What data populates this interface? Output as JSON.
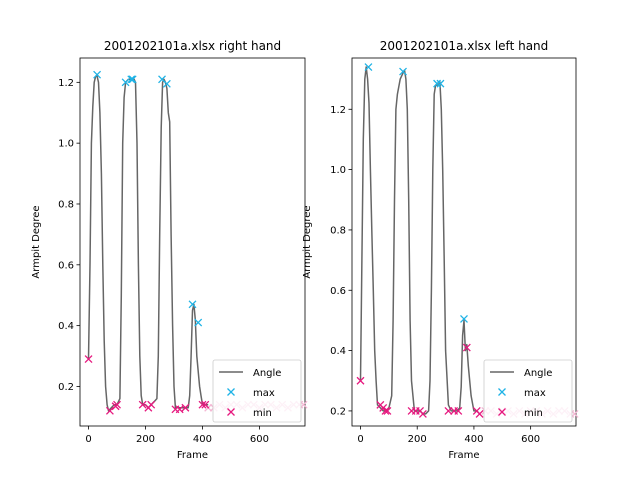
{
  "chart_data": [
    {
      "type": "line",
      "title": "2001202101a.xlsx right hand",
      "xlabel": "Frame",
      "ylabel": "Armpit Degree",
      "xlim": [
        -30,
        760
      ],
      "ylim": [
        0.07,
        1.28
      ],
      "xticks": [
        0,
        200,
        400,
        600
      ],
      "yticks": [
        0.2,
        0.4,
        0.6,
        0.8,
        1.0,
        1.2
      ],
      "ytick_labels": [
        "0.2",
        "0.4",
        "0.6",
        "0.8",
        "1.0",
        "1.2"
      ],
      "legend": {
        "position": "lower right",
        "entries": [
          "Angle",
          "max",
          "min"
        ]
      },
      "colors": {
        "angle": "#666666",
        "max": "#1fb3e6",
        "min": "#e6197f",
        "tail": "#f4b8d4"
      },
      "series": [
        {
          "name": "Angle",
          "x": [
            0,
            5,
            10,
            15,
            20,
            25,
            30,
            35,
            40,
            45,
            50,
            55,
            60,
            65,
            70,
            80,
            90,
            100,
            110,
            115,
            120,
            125,
            130,
            140,
            150,
            160,
            165,
            170,
            175,
            180,
            185,
            190,
            200,
            210,
            220,
            230,
            240,
            245,
            250,
            255,
            260,
            265,
            270,
            275,
            280,
            285,
            290,
            295,
            300,
            305,
            310,
            320,
            330,
            340,
            350,
            355,
            360,
            365,
            370,
            375,
            380,
            385,
            390,
            395,
            400,
            410,
            420
          ],
          "y": [
            0.29,
            0.6,
            1.0,
            1.12,
            1.2,
            1.22,
            1.22,
            1.2,
            1.1,
            0.9,
            0.6,
            0.35,
            0.2,
            0.14,
            0.12,
            0.13,
            0.14,
            0.14,
            0.16,
            0.5,
            1.0,
            1.15,
            1.2,
            1.21,
            1.21,
            1.21,
            1.2,
            1.0,
            0.6,
            0.3,
            0.17,
            0.14,
            0.14,
            0.13,
            0.14,
            0.15,
            0.16,
            0.3,
            0.7,
            1.05,
            1.2,
            1.21,
            1.2,
            1.18,
            1.1,
            1.07,
            0.7,
            0.4,
            0.2,
            0.13,
            0.13,
            0.13,
            0.13,
            0.13,
            0.13,
            0.17,
            0.3,
            0.45,
            0.47,
            0.42,
            0.3,
            0.25,
            0.2,
            0.17,
            0.14,
            0.14,
            0.14
          ]
        },
        {
          "name": "max",
          "x": [
            30,
            130,
            150,
            155,
            258,
            275,
            365,
            385
          ],
          "y": [
            1.225,
            1.2,
            1.21,
            1.21,
            1.21,
            1.195,
            0.47,
            0.41
          ]
        },
        {
          "name": "min",
          "x": [
            0,
            75,
            95,
            100,
            190,
            210,
            220,
            305,
            320,
            340,
            400,
            410
          ],
          "y": [
            0.29,
            0.12,
            0.135,
            0.14,
            0.14,
            0.13,
            0.14,
            0.125,
            0.125,
            0.13,
            0.14,
            0.14
          ]
        },
        {
          "x": [
            420,
            440,
            460,
            480,
            500,
            520,
            540,
            560,
            580,
            600,
            620,
            640,
            660,
            680,
            700,
            720,
            740,
            755
          ],
          "y": [
            0.13,
            0.13,
            0.14,
            0.13,
            0.14,
            0.14,
            0.13,
            0.14,
            0.14,
            0.13,
            0.14,
            0.14,
            0.13,
            0.14,
            0.13,
            0.14,
            0.14,
            0.14
          ]
        }
      ]
    },
    {
      "type": "line",
      "title": "2001202101a.xlsx left hand",
      "xlabel": "Frame",
      "ylabel": "Armpit Degree",
      "xlim": [
        -30,
        760
      ],
      "ylim": [
        0.15,
        1.37
      ],
      "xticks": [
        0,
        200,
        400,
        600
      ],
      "yticks": [
        0.2,
        0.4,
        0.6,
        0.8,
        1.0,
        1.2
      ],
      "ytick_labels": [
        "0.2",
        "0.4",
        "0.6",
        "0.8",
        "1.0",
        "1.2"
      ],
      "legend": {
        "position": "lower right",
        "entries": [
          "Angle",
          "max",
          "min"
        ]
      },
      "colors": {
        "angle": "#666666",
        "max": "#1fb3e6",
        "min": "#e6197f",
        "tail": "#f4b8d4"
      },
      "series": [
        {
          "name": "Angle",
          "x": [
            0,
            5,
            10,
            15,
            20,
            25,
            30,
            35,
            40,
            45,
            50,
            55,
            60,
            70,
            80,
            90,
            100,
            110,
            115,
            120,
            125,
            130,
            140,
            150,
            155,
            160,
            165,
            170,
            175,
            180,
            190,
            200,
            210,
            220,
            230,
            240,
            245,
            250,
            255,
            260,
            265,
            270,
            275,
            280,
            285,
            290,
            295,
            300,
            310,
            320,
            330,
            340,
            350,
            355,
            360,
            365,
            370,
            375,
            380,
            385,
            390,
            400,
            410,
            420
          ],
          "y": [
            0.3,
            0.7,
            1.1,
            1.3,
            1.34,
            1.3,
            1.22,
            1.0,
            0.8,
            0.6,
            0.4,
            0.3,
            0.22,
            0.21,
            0.2,
            0.2,
            0.21,
            0.25,
            0.5,
            0.9,
            1.2,
            1.25,
            1.3,
            1.32,
            1.33,
            1.3,
            1.2,
            0.9,
            0.5,
            0.3,
            0.2,
            0.2,
            0.2,
            0.19,
            0.19,
            0.2,
            0.3,
            0.6,
            1.0,
            1.25,
            1.28,
            1.28,
            1.28,
            1.29,
            1.2,
            1.0,
            0.7,
            0.4,
            0.22,
            0.2,
            0.2,
            0.2,
            0.21,
            0.28,
            0.45,
            0.5,
            0.4,
            0.42,
            0.35,
            0.3,
            0.25,
            0.2,
            0.2,
            0.19
          ]
        },
        {
          "name": "max",
          "x": [
            28,
            150,
            270,
            282,
            365
          ],
          "y": [
            1.34,
            1.325,
            1.285,
            1.285,
            0.505
          ]
        },
        {
          "name": "min",
          "x": [
            0,
            70,
            80,
            88,
            95,
            180,
            195,
            210,
            220,
            310,
            330,
            345,
            375,
            410,
            420
          ],
          "y": [
            0.3,
            0.22,
            0.21,
            0.2,
            0.2,
            0.2,
            0.2,
            0.2,
            0.19,
            0.2,
            0.2,
            0.2,
            0.41,
            0.2,
            0.19
          ]
        },
        {
          "x": [
            420,
            440,
            460,
            480,
            500,
            520,
            540,
            560,
            580,
            600,
            620,
            640,
            660,
            680,
            700,
            720,
            740,
            755
          ],
          "y": [
            0.19,
            0.2,
            0.2,
            0.19,
            0.2,
            0.2,
            0.19,
            0.2,
            0.19,
            0.2,
            0.2,
            0.19,
            0.2,
            0.19,
            0.2,
            0.2,
            0.19,
            0.19
          ]
        }
      ]
    }
  ]
}
